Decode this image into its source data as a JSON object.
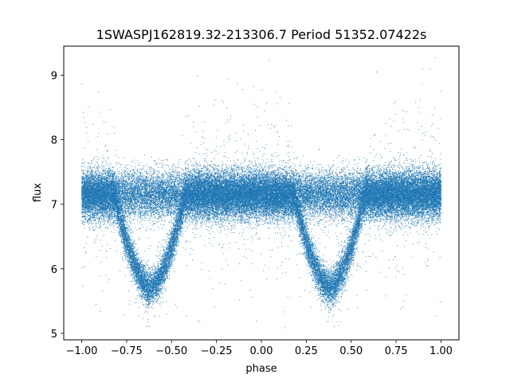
{
  "chart_data": {
    "type": "scatter",
    "title": "1SWASPJ162819.32-213306.7 Period 51352.07422s",
    "xlabel": "phase",
    "ylabel": "flux",
    "xlim": [
      -1.1,
      1.1
    ],
    "ylim": [
      4.9,
      9.45
    ],
    "xticks": [
      -1.0,
      -0.75,
      -0.5,
      -0.25,
      0.0,
      0.25,
      0.5,
      0.75,
      1.0
    ],
    "xtick_labels": [
      "−1.00",
      "−0.75",
      "−0.50",
      "−0.25",
      "0.00",
      "0.25",
      "0.50",
      "0.75",
      "1.00"
    ],
    "yticks": [
      5,
      6,
      7,
      8,
      9
    ],
    "ytick_labels": [
      "5",
      "6",
      "7",
      "8",
      "9"
    ],
    "grid": false,
    "point_color": "#1f77b4",
    "series": [
      {
        "phase_range": [
          -1.0,
          1.0
        ],
        "baseline_flux": 7.15,
        "baseline_scatter": 0.18,
        "eclipse_centers": [
          -0.62,
          0.38
        ],
        "eclipse_min_flux": 5.7,
        "eclipse_half_width": 0.2,
        "point_count": 60000
      }
    ]
  }
}
